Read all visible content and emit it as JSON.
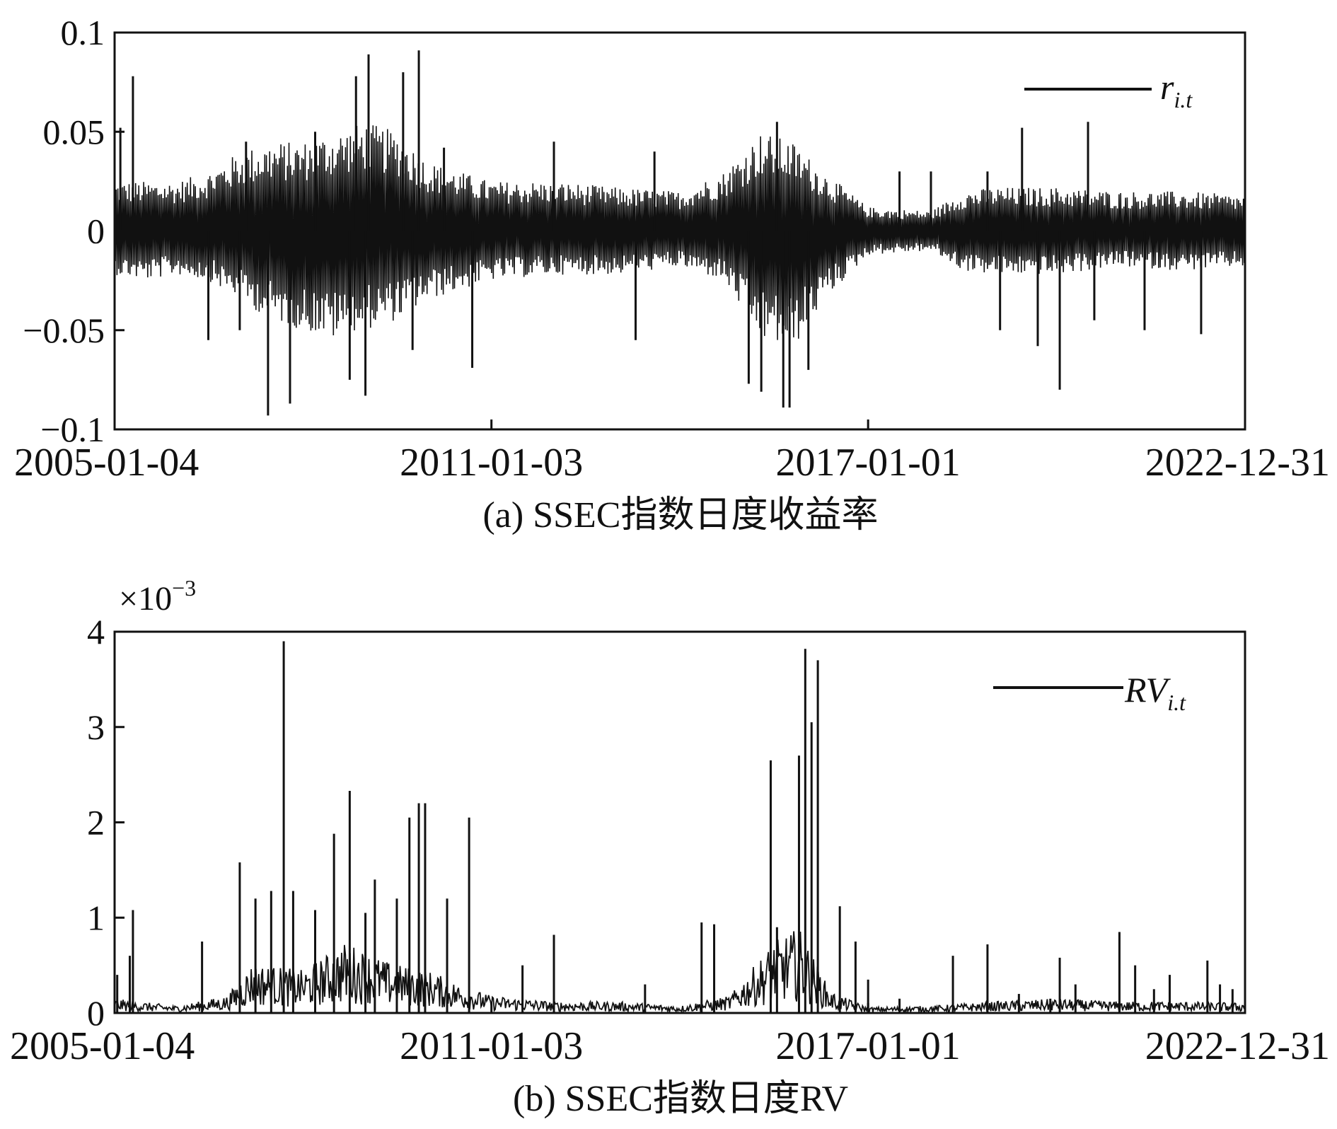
{
  "chart_data": [
    {
      "type": "line",
      "caption": "(a) SSEC指数日度收益率",
      "x": {
        "start": "2005-01-04",
        "end": "2022-12-31",
        "ticks": [
          "2005-01-04",
          "2011-01-03",
          "2017-01-01",
          "2022-12-31"
        ]
      },
      "y": {
        "ylim": [
          -0.1,
          0.1
        ],
        "ticks": [
          0.1,
          0.05,
          0,
          -0.05,
          -0.1
        ],
        "tick_labels": [
          "0.1",
          "0.05",
          "0",
          "−0.05",
          "−0.1"
        ]
      },
      "legend": {
        "label": "r",
        "subscript": "i.t",
        "placement": "top-right"
      },
      "series": [
        {
          "name": "r_i.t",
          "color": "#111111",
          "envelope": [
            {
              "x": 2005.0,
              "hi": 0.025,
              "lo": -0.022
            },
            {
              "x": 2005.5,
              "hi": 0.025,
              "lo": -0.025
            },
            {
              "x": 2006.0,
              "hi": 0.025,
              "lo": -0.022
            },
            {
              "x": 2006.5,
              "hi": 0.03,
              "lo": -0.025
            },
            {
              "x": 2007.0,
              "hi": 0.04,
              "lo": -0.035
            },
            {
              "x": 2007.5,
              "hi": 0.045,
              "lo": -0.045
            },
            {
              "x": 2008.0,
              "hi": 0.045,
              "lo": -0.05
            },
            {
              "x": 2008.5,
              "hi": 0.05,
              "lo": -0.055
            },
            {
              "x": 2009.0,
              "hi": 0.055,
              "lo": -0.05
            },
            {
              "x": 2009.5,
              "hi": 0.05,
              "lo": -0.045
            },
            {
              "x": 2010.0,
              "hi": 0.035,
              "lo": -0.035
            },
            {
              "x": 2010.5,
              "hi": 0.03,
              "lo": -0.03
            },
            {
              "x": 2011.0,
              "hi": 0.025,
              "lo": -0.025
            },
            {
              "x": 2012.0,
              "hi": 0.025,
              "lo": -0.022
            },
            {
              "x": 2013.0,
              "hi": 0.022,
              "lo": -0.022
            },
            {
              "x": 2014.0,
              "hi": 0.02,
              "lo": -0.018
            },
            {
              "x": 2014.7,
              "hi": 0.03,
              "lo": -0.025
            },
            {
              "x": 2015.3,
              "hi": 0.05,
              "lo": -0.055
            },
            {
              "x": 2015.8,
              "hi": 0.045,
              "lo": -0.06
            },
            {
              "x": 2016.3,
              "hi": 0.03,
              "lo": -0.035
            },
            {
              "x": 2017.0,
              "hi": 0.012,
              "lo": -0.012
            },
            {
              "x": 2018.0,
              "hi": 0.01,
              "lo": -0.01
            },
            {
              "x": 2018.5,
              "hi": 0.02,
              "lo": -0.02
            },
            {
              "x": 2019.0,
              "hi": 0.022,
              "lo": -0.022
            },
            {
              "x": 2020.0,
              "hi": 0.022,
              "lo": -0.022
            },
            {
              "x": 2021.0,
              "hi": 0.02,
              "lo": -0.018
            },
            {
              "x": 2022.0,
              "hi": 0.02,
              "lo": -0.02
            },
            {
              "x": 2023.0,
              "hi": 0.018,
              "lo": -0.018
            }
          ],
          "spikes": [
            {
              "x": 2005.1,
              "y": 0.052
            },
            {
              "x": 2005.3,
              "y": 0.078
            },
            {
              "x": 2006.5,
              "y": -0.055
            },
            {
              "x": 2007.0,
              "y": -0.05
            },
            {
              "x": 2007.1,
              "y": 0.045
            },
            {
              "x": 2007.45,
              "y": -0.093
            },
            {
              "x": 2007.8,
              "y": -0.087
            },
            {
              "x": 2008.2,
              "y": 0.05
            },
            {
              "x": 2008.75,
              "y": -0.075
            },
            {
              "x": 2008.85,
              "y": 0.078
            },
            {
              "x": 2009.0,
              "y": -0.083
            },
            {
              "x": 2009.05,
              "y": 0.089
            },
            {
              "x": 2009.6,
              "y": 0.08
            },
            {
              "x": 2009.75,
              "y": -0.06
            },
            {
              "x": 2009.85,
              "y": 0.091
            },
            {
              "x": 2010.25,
              "y": 0.042
            },
            {
              "x": 2010.7,
              "y": -0.069
            },
            {
              "x": 2012.0,
              "y": 0.045
            },
            {
              "x": 2013.6,
              "y": 0.04
            },
            {
              "x": 2013.3,
              "y": -0.055
            },
            {
              "x": 2015.1,
              "y": -0.077
            },
            {
              "x": 2015.3,
              "y": -0.081
            },
            {
              "x": 2015.55,
              "y": 0.055
            },
            {
              "x": 2015.65,
              "y": -0.089
            },
            {
              "x": 2015.75,
              "y": -0.089
            },
            {
              "x": 2016.05,
              "y": -0.07
            },
            {
              "x": 2017.5,
              "y": 0.03
            },
            {
              "x": 2018.0,
              "y": 0.03
            },
            {
              "x": 2018.9,
              "y": 0.03
            },
            {
              "x": 2019.1,
              "y": -0.05
            },
            {
              "x": 2019.45,
              "y": 0.052
            },
            {
              "x": 2019.7,
              "y": -0.058
            },
            {
              "x": 2020.05,
              "y": -0.08
            },
            {
              "x": 2020.5,
              "y": 0.055
            },
            {
              "x": 2020.6,
              "y": -0.045
            },
            {
              "x": 2021.4,
              "y": -0.05
            },
            {
              "x": 2022.3,
              "y": -0.052
            }
          ]
        }
      ]
    },
    {
      "type": "line",
      "caption": "(b) SSEC指数日度RV",
      "x": {
        "start": "2005-01-04",
        "end": "2022-12-31",
        "ticks": [
          "2005-01-04",
          "2011-01-03",
          "2017-01-01",
          "2022-12-31"
        ]
      },
      "y": {
        "ylim": [
          0,
          4
        ],
        "scale": "×10⁻³",
        "scale_base": "×10",
        "scale_exp": "−3",
        "ticks": [
          4,
          3,
          2,
          1,
          0
        ],
        "tick_labels": [
          "4",
          "3",
          "2",
          "1",
          "0"
        ]
      },
      "legend": {
        "label": "RV",
        "subscript": "i.t",
        "placement": "top-right"
      },
      "series": [
        {
          "name": "RV_i.t",
          "color": "#111111",
          "baseline": [
            {
              "x": 2005.0,
              "v": 0.1
            },
            {
              "x": 2006.0,
              "v": 0.05
            },
            {
              "x": 2006.8,
              "v": 0.12
            },
            {
              "x": 2007.2,
              "v": 0.35
            },
            {
              "x": 2008.0,
              "v": 0.3
            },
            {
              "x": 2008.7,
              "v": 0.5
            },
            {
              "x": 2009.4,
              "v": 0.35
            },
            {
              "x": 2010.0,
              "v": 0.3
            },
            {
              "x": 2010.5,
              "v": 0.2
            },
            {
              "x": 2011.0,
              "v": 0.12
            },
            {
              "x": 2012.0,
              "v": 0.08
            },
            {
              "x": 2013.0,
              "v": 0.08
            },
            {
              "x": 2014.0,
              "v": 0.05
            },
            {
              "x": 2014.8,
              "v": 0.12
            },
            {
              "x": 2015.5,
              "v": 0.5
            },
            {
              "x": 2015.9,
              "v": 0.6
            },
            {
              "x": 2016.4,
              "v": 0.15
            },
            {
              "x": 2017.0,
              "v": 0.04
            },
            {
              "x": 2018.0,
              "v": 0.05
            },
            {
              "x": 2019.0,
              "v": 0.08
            },
            {
              "x": 2020.0,
              "v": 0.1
            },
            {
              "x": 2021.0,
              "v": 0.08
            },
            {
              "x": 2022.0,
              "v": 0.08
            },
            {
              "x": 2023.0,
              "v": 0.07
            }
          ],
          "spikes": [
            {
              "x": 2005.05,
              "v": 0.4
            },
            {
              "x": 2005.3,
              "v": 1.08
            },
            {
              "x": 2005.25,
              "v": 0.6
            },
            {
              "x": 2006.4,
              "v": 0.75
            },
            {
              "x": 2007.0,
              "v": 1.58
            },
            {
              "x": 2007.25,
              "v": 1.2
            },
            {
              "x": 2007.5,
              "v": 1.28
            },
            {
              "x": 2007.7,
              "v": 3.9
            },
            {
              "x": 2007.85,
              "v": 1.28
            },
            {
              "x": 2008.2,
              "v": 1.08
            },
            {
              "x": 2008.5,
              "v": 1.88
            },
            {
              "x": 2008.75,
              "v": 2.33
            },
            {
              "x": 2009.0,
              "v": 1.05
            },
            {
              "x": 2009.15,
              "v": 1.4
            },
            {
              "x": 2009.5,
              "v": 1.2
            },
            {
              "x": 2009.7,
              "v": 2.05
            },
            {
              "x": 2009.85,
              "v": 2.2
            },
            {
              "x": 2009.95,
              "v": 2.2
            },
            {
              "x": 2010.3,
              "v": 1.2
            },
            {
              "x": 2010.65,
              "v": 2.05
            },
            {
              "x": 2011.5,
              "v": 0.5
            },
            {
              "x": 2012.0,
              "v": 0.82
            },
            {
              "x": 2013.45,
              "v": 0.3
            },
            {
              "x": 2014.35,
              "v": 0.95
            },
            {
              "x": 2014.55,
              "v": 0.93
            },
            {
              "x": 2015.45,
              "v": 2.65
            },
            {
              "x": 2015.55,
              "v": 0.9
            },
            {
              "x": 2015.9,
              "v": 2.7
            },
            {
              "x": 2016.0,
              "v": 3.82
            },
            {
              "x": 2016.1,
              "v": 3.05
            },
            {
              "x": 2016.2,
              "v": 3.7
            },
            {
              "x": 2016.55,
              "v": 1.12
            },
            {
              "x": 2016.8,
              "v": 0.75
            },
            {
              "x": 2017.0,
              "v": 0.35
            },
            {
              "x": 2017.5,
              "v": 0.15
            },
            {
              "x": 2018.35,
              "v": 0.6
            },
            {
              "x": 2018.9,
              "v": 0.72
            },
            {
              "x": 2019.4,
              "v": 0.2
            },
            {
              "x": 2019.9,
              "v": 0.15
            },
            {
              "x": 2020.05,
              "v": 0.58
            },
            {
              "x": 2020.3,
              "v": 0.3
            },
            {
              "x": 2021.0,
              "v": 0.85
            },
            {
              "x": 2021.25,
              "v": 0.5
            },
            {
              "x": 2021.55,
              "v": 0.25
            },
            {
              "x": 2021.8,
              "v": 0.4
            },
            {
              "x": 2022.4,
              "v": 0.55
            },
            {
              "x": 2022.6,
              "v": 0.3
            },
            {
              "x": 2022.8,
              "v": 0.25
            }
          ]
        }
      ]
    }
  ]
}
